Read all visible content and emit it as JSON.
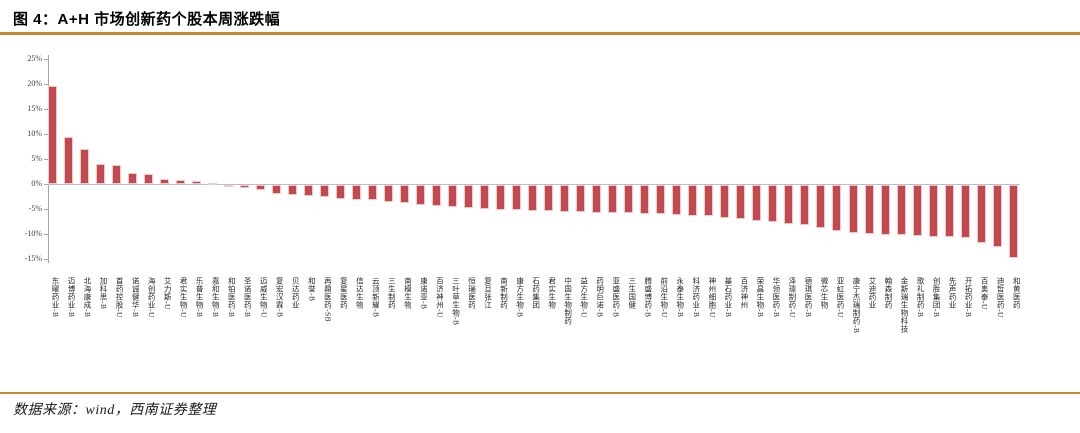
{
  "header": {
    "title": "图 4：A+H 市场创新药个股本周涨跌幅"
  },
  "footer": {
    "source": "数据来源：wind，西南证券整理"
  },
  "colors": {
    "accent_orange": "#C9872E",
    "bar_fill": "#C4494E",
    "bar_edge": "#ECC9CA",
    "axis_line": "#A6A6A6",
    "zero_line": "#BFBFBF",
    "tick_text": "#404040",
    "label_text": "#262626"
  },
  "chart_data": {
    "type": "bar",
    "title": "图 4：A+H 市场创新药个股本周涨跌幅",
    "xlabel": "",
    "ylabel": "",
    "ylim": [
      -15,
      25
    ],
    "grid": false,
    "legend": false,
    "yticks": [
      25,
      20,
      15,
      10,
      5,
      0,
      -5,
      -10,
      -15
    ],
    "ytick_labels": [
      "25%",
      "20%",
      "15%",
      "10%",
      "5%",
      "0%",
      "-5%",
      "-10%",
      "-15%"
    ],
    "unit": "percent",
    "categories": [
      "东曜药业-B",
      "迈博药业-B",
      "北海康成-B",
      "加科思-B",
      "首药控股-U",
      "诺诚健华-B",
      "海创药业-U",
      "艾力斯-U",
      "君实生物-U",
      "乐普生物-B",
      "嘉和生物-B",
      "和铂医药-B",
      "圣诺医药-B",
      "迈威生物-U",
      "复宏汉霖-B",
      "贝达药业",
      "和誉-B",
      "再鼎医药-SB",
      "复星医药",
      "信达生物",
      "云顶新耀-B",
      "三生制药",
      "南模生物",
      "康诺亚-B",
      "百济神州-U",
      "三叶草生物-B",
      "恒瑞医药",
      "复旦张江",
      "南新制药",
      "康方生物-B",
      "石药集团",
      "君实生物",
      "中国生物制药",
      "益方生物-U",
      "药明巨诺-B",
      "亚盛医药-B",
      "三生国健",
      "腾盛博药-B",
      "前沿生物-U",
      "永泰生物-B",
      "科济药业-B",
      "神州细胞-U",
      "基石药业-B",
      "百济神州",
      "荣昌生物-B",
      "华领医药-B",
      "泽璟制药-U",
      "德琪医药-B",
      "微芯生物",
      "亚虹医药-U",
      "康宁杰瑞制药-B",
      "艾迪药业",
      "翰森制药",
      "金斯瑞生物科技",
      "歌礼制药-B",
      "创胜集团-B",
      "先声药业",
      "开拓药业-B",
      "百奥泰-U",
      "迪哲医药-U",
      "和黄医药"
    ],
    "values": [
      19.6,
      9.5,
      7.0,
      4.1,
      3.9,
      2.3,
      2.1,
      1.0,
      0.8,
      0.7,
      0.1,
      -0.1,
      -0.5,
      -0.9,
      -1.8,
      -2.0,
      -2.2,
      -2.3,
      -2.8,
      -2.9,
      -3.0,
      -3.4,
      -3.6,
      -4.0,
      -4.2,
      -4.4,
      -4.6,
      -4.7,
      -4.9,
      -5.0,
      -5.1,
      -5.2,
      -5.3,
      -5.4,
      -5.5,
      -5.5,
      -5.6,
      -5.7,
      -5.8,
      -5.9,
      -6.1,
      -6.2,
      -6.5,
      -6.7,
      -7.2,
      -7.4,
      -7.8,
      -8.0,
      -8.5,
      -9.2,
      -9.5,
      -9.7,
      -9.9,
      -10.0,
      -10.2,
      -10.3,
      -10.4,
      -10.5,
      -11.5,
      -12.4,
      -14.5
    ]
  }
}
